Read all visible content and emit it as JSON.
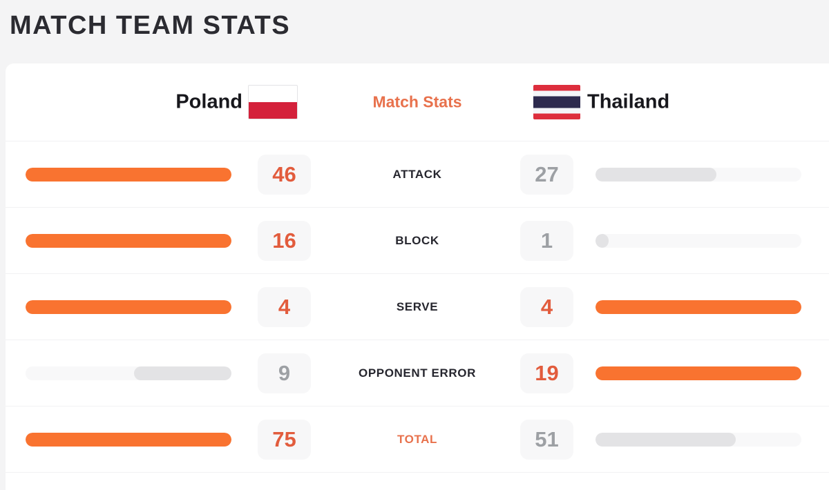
{
  "page": {
    "title": "MATCH TEAM STATS"
  },
  "header": {
    "home_team": "Poland",
    "away_team": "Thailand",
    "center_label": "Match Stats",
    "home_flag": "poland-flag",
    "away_flag": "thailand-flag"
  },
  "chart_data": {
    "type": "bar",
    "title": "Match Stats",
    "categories": [
      "ATTACK",
      "BLOCK",
      "SERVE",
      "OPPONENT ERROR",
      "TOTAL"
    ],
    "series": [
      {
        "name": "Poland",
        "values": [
          46,
          16,
          4,
          9,
          75
        ]
      },
      {
        "name": "Thailand",
        "values": [
          27,
          1,
          4,
          19,
          51
        ]
      }
    ],
    "label_accent": [
      false,
      false,
      false,
      false,
      true
    ],
    "layout": "mirrored horizontal bars, each side scaled to the row maximum; higher value highlighted orange, lower value gray, ties both orange"
  },
  "colors": {
    "bar_orange": "#f97330",
    "bar_gray": "#e3e3e5",
    "bar_track": "#f8f8f9",
    "value_orange": "#e25c3d",
    "value_gray": "#9da0a4",
    "accent_text": "#e8714c",
    "dark_text": "#26262e",
    "page_bg": "#f4f4f5",
    "card_bg": "#ffffff",
    "divider": "#f1f1f3",
    "value_box_bg": "#f7f7f8",
    "poland_flag_red": "#d4213b",
    "thailand_flag_red": "#dd2e3d",
    "thailand_flag_navy": "#2d2a4e"
  }
}
